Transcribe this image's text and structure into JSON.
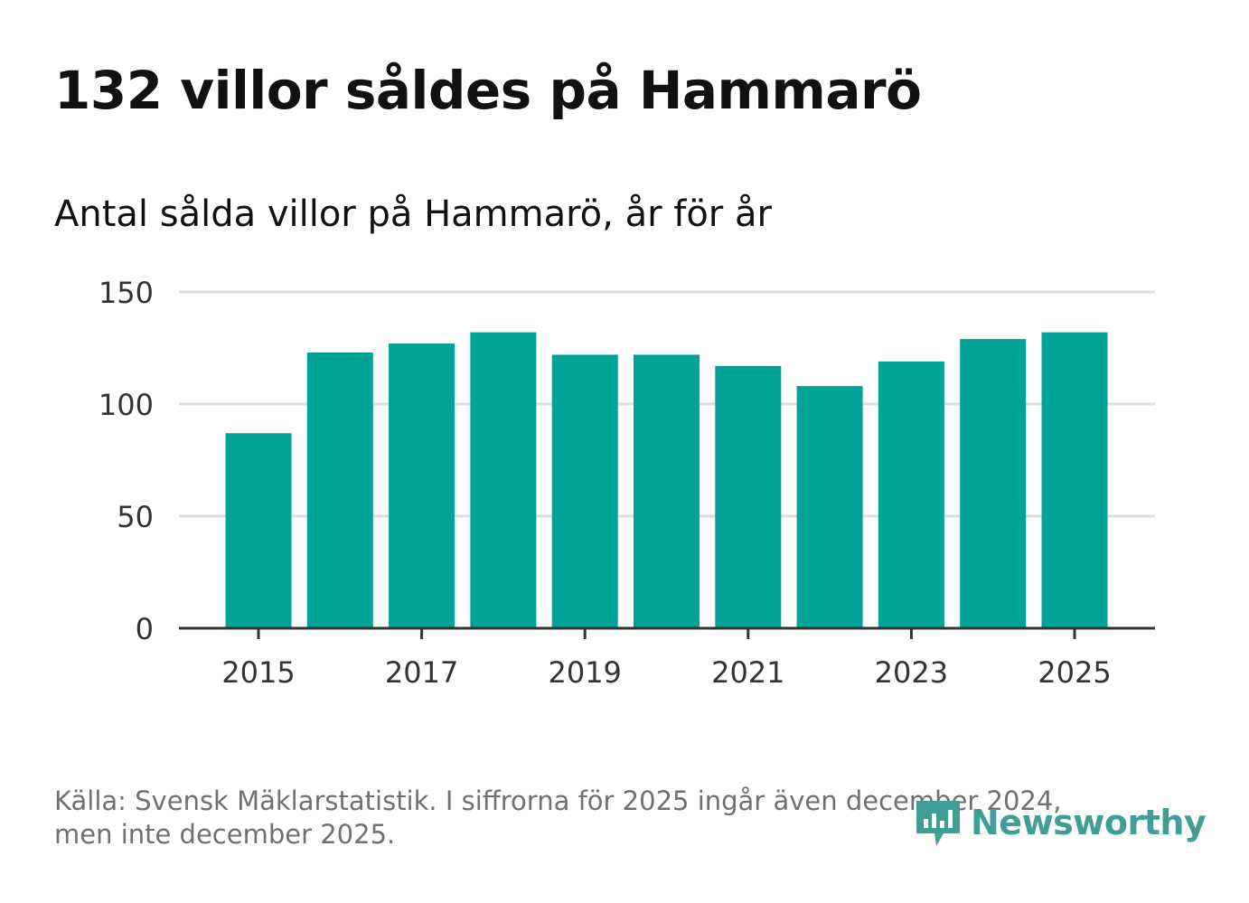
{
  "title": "132 villor såldes på Hammarö",
  "subtitle": "Antal sålda villor på Hammarö, år för år",
  "footer": {
    "line1": "Källa: Svensk Mäklarstatistik. I siffrorna för 2025 ingår även december 2024,",
    "line2": "men inte december 2025."
  },
  "brand": {
    "name": "Newsworthy",
    "icon": "newsworthy-logo-icon"
  },
  "colors": {
    "bar": "#00a398",
    "grid": "#dddddd",
    "axis": "#333333",
    "brand": "#3f9f95"
  },
  "chart_data": {
    "type": "bar",
    "title": "Antal sålda villor på Hammarö, år för år",
    "xlabel": "",
    "ylabel": "",
    "categories": [
      "2015",
      "2016",
      "2017",
      "2018",
      "2019",
      "2020",
      "2021",
      "2022",
      "2023",
      "2024",
      "2025"
    ],
    "values": [
      87,
      123,
      127,
      132,
      122,
      122,
      117,
      108,
      119,
      129,
      132
    ],
    "x_tick_labels": [
      "2015",
      "2017",
      "2019",
      "2021",
      "2023",
      "2025"
    ],
    "y_ticks": [
      0,
      50,
      100,
      150
    ],
    "y_tick_labels": [
      "0",
      "50",
      "100",
      "150"
    ],
    "ylim": [
      0,
      150
    ],
    "grid": true,
    "legend": "none"
  }
}
